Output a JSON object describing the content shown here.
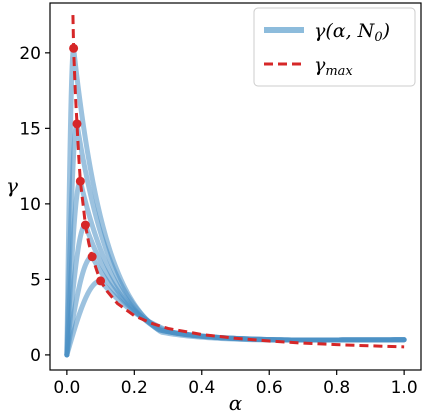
{
  "chart_data": {
    "type": "line",
    "xlabel": "α",
    "ylabel": "γ",
    "xlim": [
      -0.05,
      1.05
    ],
    "ylim": [
      -1,
      23.3
    ],
    "xticks": [
      {
        "value": 0.0,
        "label": "0.0"
      },
      {
        "value": 0.2,
        "label": "0.2"
      },
      {
        "value": 0.4,
        "label": "0.4"
      },
      {
        "value": 0.6,
        "label": "0.6"
      },
      {
        "value": 0.8,
        "label": "0.8"
      },
      {
        "value": 1.0,
        "label": "1.0"
      }
    ],
    "yticks": [
      {
        "value": 0,
        "label": "0"
      },
      {
        "value": 5,
        "label": "5"
      },
      {
        "value": 10,
        "label": "10"
      },
      {
        "value": 15,
        "label": "15"
      },
      {
        "value": 20,
        "label": "20"
      }
    ],
    "grid": false,
    "legend_position": "top-right",
    "legend": [
      {
        "label": "γ(α, N",
        "sub": "0",
        "suffix": ")",
        "style": "solid-light-blue"
      },
      {
        "label": "γ",
        "sub": "max",
        "suffix": "",
        "style": "dashed-red"
      }
    ],
    "series": [
      {
        "name": "γ(α, N₀)",
        "kind": "family",
        "color": "#4a90c4",
        "peaks": [
          {
            "x": 0.02,
            "y": 20.3
          },
          {
            "x": 0.03,
            "y": 15.3
          },
          {
            "x": 0.04,
            "y": 11.5
          },
          {
            "x": 0.055,
            "y": 8.6
          },
          {
            "x": 0.075,
            "y": 6.5
          },
          {
            "x": 0.1,
            "y": 4.9
          }
        ]
      },
      {
        "name": "γ_max",
        "kind": "dashed",
        "color": "#d62728",
        "x": [
          0.018,
          0.02,
          0.025,
          0.03,
          0.035,
          0.04,
          0.05,
          0.055,
          0.065,
          0.075,
          0.09,
          0.1,
          0.12,
          0.15,
          0.2,
          0.25,
          0.3,
          0.4,
          0.5,
          0.6,
          0.7,
          0.8,
          0.9,
          1.0
        ],
        "y": [
          22.5,
          20.3,
          17.4,
          15.3,
          13.2,
          11.5,
          9.6,
          8.6,
          7.4,
          6.5,
          5.5,
          4.9,
          4.2,
          3.4,
          2.6,
          2.1,
          1.75,
          1.35,
          1.1,
          0.92,
          0.78,
          0.68,
          0.6,
          0.53
        ]
      }
    ],
    "markers": [
      {
        "x": 0.02,
        "y": 20.3
      },
      {
        "x": 0.03,
        "y": 15.3
      },
      {
        "x": 0.04,
        "y": 11.5
      },
      {
        "x": 0.055,
        "y": 8.6
      },
      {
        "x": 0.075,
        "y": 6.5
      },
      {
        "x": 0.1,
        "y": 4.9
      }
    ],
    "tail_value_at_1": 1.0
  },
  "colors": {
    "family": "#4a90c4",
    "family_legend": "#8dbcdc",
    "max": "#d62728",
    "axis": "#000000"
  }
}
